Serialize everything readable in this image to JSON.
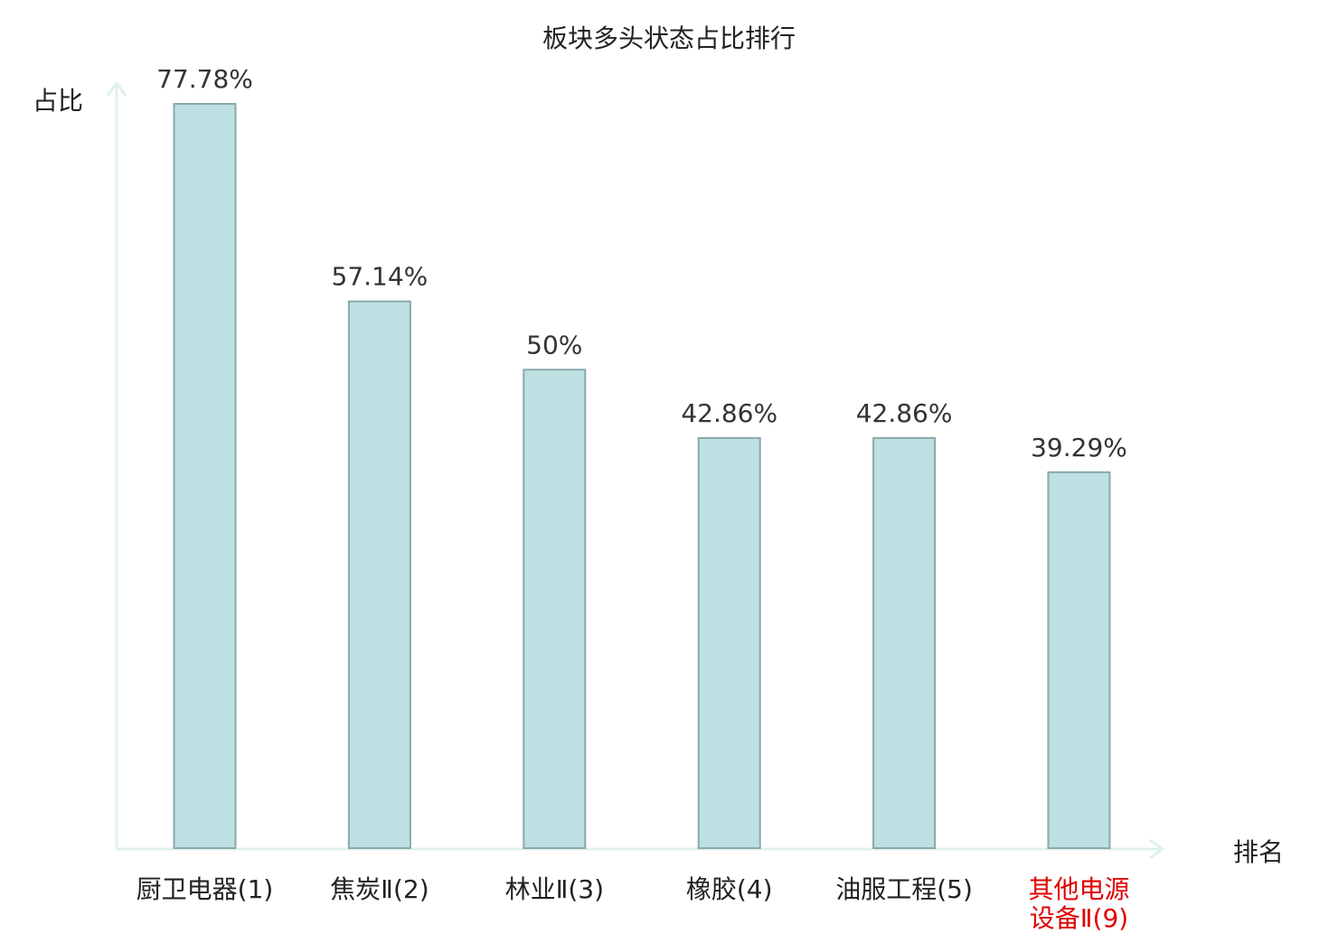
{
  "chart_data": {
    "type": "bar",
    "title": "板块多头状态占比排行",
    "xlabel": "排名",
    "ylabel": "占比",
    "categories": [
      [
        "厨卫电器(1)"
      ],
      [
        "焦炭Ⅱ(2)"
      ],
      [
        "林业Ⅱ(3)"
      ],
      [
        "橡胶(4)"
      ],
      [
        "油服工程(5)"
      ],
      [
        "其他电源",
        "设备Ⅱ(9)"
      ]
    ],
    "values": [
      77.78,
      57.14,
      50,
      42.86,
      42.86,
      39.29
    ],
    "value_labels": [
      "77.78%",
      "57.14%",
      "50%",
      "42.86%",
      "42.86%",
      "39.29%"
    ],
    "highlight_index": 5,
    "ylim": [
      0,
      77.78
    ],
    "grid": false,
    "colors": {
      "bar_fill": "#bde0e3",
      "bar_stroke": "#8aa9ab",
      "axis": "#dff1ee",
      "text": "#333333",
      "highlight": "#e00000"
    }
  }
}
